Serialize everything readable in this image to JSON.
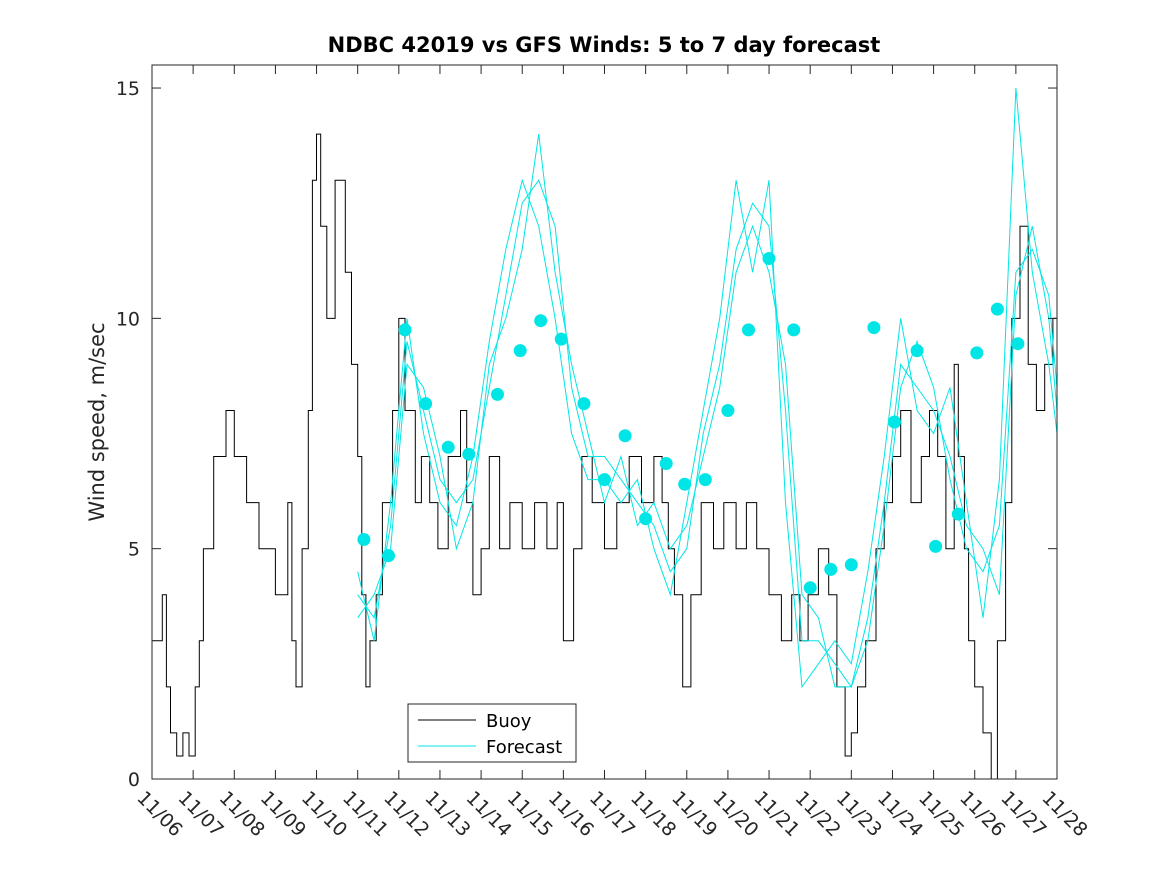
{
  "chart_data": {
    "type": "line",
    "title": "NDBC 42019 vs GFS Winds: 5 to 7 day forecast",
    "xlabel": "",
    "ylabel": "Wind speed, m/sec",
    "xlim": [
      0,
      22
    ],
    "ylim": [
      0,
      15.5
    ],
    "x_ticks": [
      {
        "value": 0,
        "label": "11/06"
      },
      {
        "value": 1,
        "label": "11/07"
      },
      {
        "value": 2,
        "label": "11/08"
      },
      {
        "value": 3,
        "label": "11/09"
      },
      {
        "value": 4,
        "label": "11/10"
      },
      {
        "value": 5,
        "label": "11/11"
      },
      {
        "value": 6,
        "label": "11/12"
      },
      {
        "value": 7,
        "label": "11/13"
      },
      {
        "value": 8,
        "label": "11/14"
      },
      {
        "value": 9,
        "label": "11/15"
      },
      {
        "value": 10,
        "label": "11/16"
      },
      {
        "value": 11,
        "label": "11/17"
      },
      {
        "value": 12,
        "label": "11/18"
      },
      {
        "value": 13,
        "label": "11/19"
      },
      {
        "value": 14,
        "label": "11/20"
      },
      {
        "value": 15,
        "label": "11/21"
      },
      {
        "value": 16,
        "label": "11/22"
      },
      {
        "value": 17,
        "label": "11/23"
      },
      {
        "value": 18,
        "label": "11/24"
      },
      {
        "value": 19,
        "label": "11/25"
      },
      {
        "value": 20,
        "label": "11/26"
      },
      {
        "value": 21,
        "label": "11/27"
      },
      {
        "value": 22,
        "label": "11/28"
      }
    ],
    "y_ticks": [
      {
        "value": 0,
        "label": "0"
      },
      {
        "value": 5,
        "label": "5"
      },
      {
        "value": 10,
        "label": "10"
      },
      {
        "value": 15,
        "label": "15"
      }
    ],
    "grid": false,
    "legend": {
      "position": "bottom-center",
      "entries": [
        {
          "name": "Buoy",
          "color": "#000000"
        },
        {
          "name": "Forecast",
          "color": "#00e6e6"
        }
      ]
    },
    "colors": {
      "buoy": "#000000",
      "forecast": "#00e6e6",
      "points": "#00e6e6",
      "axes": "#262626"
    },
    "series": [
      {
        "name": "Buoy",
        "style": "step",
        "x": [
          0.0,
          0.25,
          0.35,
          0.45,
          0.6,
          0.75,
          0.9,
          1.05,
          1.15,
          1.25,
          1.5,
          1.8,
          2.0,
          2.3,
          2.6,
          2.8,
          3.0,
          3.3,
          3.4,
          3.5,
          3.65,
          3.8,
          3.9,
          4.0,
          4.1,
          4.25,
          4.45,
          4.7,
          4.85,
          5.0,
          5.1,
          5.2,
          5.3,
          5.45,
          5.6,
          5.85,
          6.0,
          6.15,
          6.4,
          6.55,
          6.75,
          6.95,
          7.2,
          7.5,
          7.65,
          7.8,
          8.0,
          8.2,
          8.45,
          8.7,
          9.0,
          9.3,
          9.6,
          9.85,
          10.0,
          10.25,
          10.45,
          10.7,
          11.0,
          11.3,
          11.6,
          11.9,
          12.2,
          12.4,
          12.55,
          12.7,
          12.9,
          13.1,
          13.35,
          13.65,
          13.9,
          14.2,
          14.45,
          14.7,
          15.0,
          15.3,
          15.55,
          15.75,
          15.95,
          16.2,
          16.45,
          16.65,
          16.85,
          17.0,
          17.15,
          17.35,
          17.6,
          17.8,
          18.0,
          18.2,
          18.45,
          18.7,
          18.9,
          19.1,
          19.3,
          19.5,
          19.6,
          19.75,
          19.85,
          20.0,
          20.2,
          20.4,
          20.55,
          20.75,
          20.9,
          21.1,
          21.3,
          21.5,
          21.7,
          21.9,
          22.0
        ],
        "values": [
          3,
          4,
          2,
          1,
          0.5,
          1,
          0.5,
          2,
          3,
          5,
          7,
          8,
          7,
          6,
          5,
          5,
          4,
          6,
          3,
          2,
          5,
          8,
          13,
          14,
          12,
          10,
          13,
          11,
          9,
          7,
          4,
          2,
          3,
          4,
          6,
          8,
          10,
          8,
          6,
          7,
          6,
          5,
          7,
          8,
          6,
          4,
          5,
          7,
          5,
          6,
          5,
          6,
          5,
          6,
          3,
          5,
          7,
          6,
          5,
          6,
          7,
          6,
          7,
          6,
          5,
          4,
          2,
          4,
          6,
          5,
          6,
          5,
          6,
          5,
          4,
          3,
          4,
          3,
          4,
          5,
          4,
          2,
          0.5,
          1,
          2,
          3,
          5,
          6,
          7,
          8,
          6,
          7,
          8,
          7,
          5,
          9,
          7,
          5,
          3,
          2,
          1,
          0,
          3,
          6,
          10,
          12,
          9,
          8,
          9,
          10,
          9
        ]
      },
      {
        "name": "Forecast",
        "style": "line",
        "x": [
          5.0,
          5.4,
          5.8,
          6.2,
          6.6,
          7.0,
          7.4,
          7.8,
          8.2,
          8.6,
          9.0,
          9.4,
          9.8,
          10.2,
          10.6,
          11.0,
          11.4,
          11.8,
          12.2,
          12.6,
          13.0,
          13.4,
          13.8,
          14.2,
          14.6,
          15.0,
          15.4,
          15.8,
          16.2,
          16.6,
          17.0,
          17.4,
          17.8,
          18.2,
          18.6,
          19.0,
          19.4,
          19.8,
          20.2,
          20.6,
          21.0,
          21.4,
          21.8,
          22.0
        ],
        "values": [
          4.0,
          3.5,
          5.5,
          9.5,
          8.0,
          6.5,
          6.0,
          6.5,
          8.5,
          10.5,
          12.5,
          13.0,
          12.0,
          8.5,
          7.0,
          7.0,
          6.5,
          6.0,
          5.5,
          4.5,
          5.0,
          7.5,
          9.0,
          11.5,
          12.5,
          12.0,
          8.0,
          3.0,
          3.0,
          2.5,
          2.0,
          3.5,
          6.0,
          9.0,
          8.5,
          8.0,
          7.0,
          5.5,
          5.0,
          4.0,
          10.5,
          12.0,
          10.0,
          8.0
        ]
      },
      {
        "name": "Forecast",
        "style": "line",
        "x": [
          5.0,
          5.4,
          5.8,
          6.2,
          6.6,
          7.0,
          7.4,
          7.8,
          8.2,
          8.6,
          9.0,
          9.4,
          9.8,
          10.2,
          10.6,
          11.0,
          11.4,
          11.8,
          12.2,
          12.6,
          13.0,
          13.4,
          13.8,
          14.2,
          14.6,
          15.0,
          15.4,
          15.8,
          16.2,
          16.6,
          17.0,
          17.4,
          17.8,
          18.2,
          18.6,
          19.0,
          19.4,
          19.8,
          20.2,
          20.6,
          21.0,
          21.4,
          21.8,
          22.0
        ],
        "values": [
          4.5,
          3.0,
          6.0,
          10.0,
          7.5,
          6.0,
          5.5,
          7.0,
          9.5,
          11.5,
          13.0,
          12.0,
          10.0,
          7.5,
          6.5,
          6.5,
          6.0,
          6.5,
          5.0,
          4.0,
          6.0,
          8.0,
          10.0,
          13.0,
          11.0,
          13.0,
          6.0,
          2.0,
          2.5,
          3.0,
          2.5,
          4.5,
          7.0,
          10.0,
          8.0,
          7.5,
          8.5,
          6.0,
          3.5,
          6.5,
          15.0,
          11.0,
          9.0,
          7.5
        ]
      },
      {
        "name": "Forecast",
        "style": "line",
        "x": [
          5.0,
          5.4,
          5.8,
          6.2,
          6.6,
          7.0,
          7.4,
          7.8,
          8.2,
          8.6,
          9.0,
          9.4,
          9.8,
          10.2,
          10.6,
          11.0,
          11.4,
          11.8,
          12.2,
          12.6,
          13.0,
          13.4,
          13.8,
          14.2,
          14.6,
          15.0,
          15.4,
          15.8,
          16.2,
          16.6,
          17.0,
          17.4,
          17.8,
          18.2,
          18.6,
          19.0,
          19.4,
          19.8,
          20.2,
          20.6,
          21.0,
          21.4,
          21.8,
          22.0
        ],
        "values": [
          3.5,
          4.0,
          5.0,
          9.0,
          8.5,
          7.0,
          5.0,
          6.0,
          9.0,
          10.0,
          11.5,
          14.0,
          11.0,
          9.0,
          7.5,
          6.0,
          7.0,
          5.5,
          6.0,
          5.0,
          5.5,
          7.0,
          8.5,
          11.0,
          12.0,
          11.0,
          9.0,
          4.0,
          3.5,
          2.0,
          2.0,
          3.0,
          5.5,
          8.5,
          9.5,
          8.5,
          6.5,
          5.0,
          4.5,
          5.5,
          11.0,
          11.5,
          10.5,
          8.5
        ]
      }
    ],
    "points": {
      "name": "Forecast points",
      "x": [
        5.15,
        5.75,
        6.15,
        6.65,
        7.2,
        7.7,
        8.4,
        8.95,
        9.45,
        9.95,
        10.5,
        11.0,
        11.5,
        12.0,
        12.5,
        12.95,
        13.45,
        14.0,
        14.5,
        15.0,
        15.6,
        16.0,
        16.5,
        17.0,
        17.55,
        18.05,
        18.6,
        19.05,
        19.6,
        20.05,
        20.55,
        21.05
      ],
      "values": [
        5.2,
        4.85,
        9.75,
        8.15,
        7.2,
        7.05,
        8.35,
        9.3,
        9.95,
        9.55,
        8.15,
        6.5,
        7.45,
        5.65,
        6.85,
        6.4,
        6.5,
        8.0,
        9.75,
        11.3,
        9.75,
        4.15,
        4.55,
        4.65,
        9.8,
        7.75,
        9.3,
        5.05,
        5.75,
        9.25,
        10.2,
        9.45
      ]
    }
  }
}
